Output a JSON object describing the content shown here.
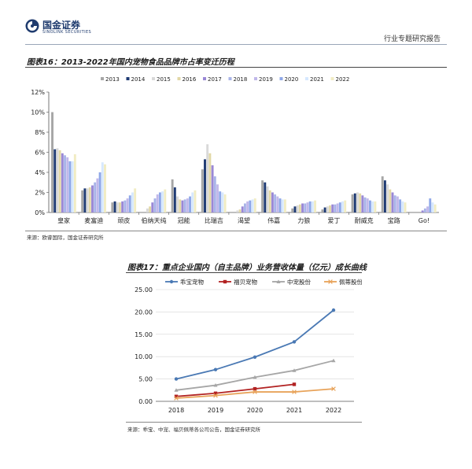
{
  "header": {
    "logo_cn": "国金证券",
    "logo_en": "SINOLINK SECURITIES",
    "report_type": "行业专题研究报告"
  },
  "figure16": {
    "caption": "图表16：2013-2022年国内宠物食品品牌市占率变迁历程",
    "source": "来源：欧睿国际，国金证券研究所"
  },
  "figure17": {
    "caption": "图表17：重点企业国内（自主品牌）业务营收体量（亿元）成长曲线",
    "source": "来源：乖宝、中宠、福贝佩蒂各公司公告，国金证券研究所"
  },
  "chart_data": [
    {
      "type": "bar",
      "categories": [
        "皇家",
        "麦富迪",
        "顽皮",
        "伯纳天纯",
        "冠能",
        "比瑞吉",
        "渴望",
        "伟嘉",
        "力狼",
        "爱丁",
        "耐威克",
        "宝路",
        "Go!"
      ],
      "ylim": [
        0,
        12
      ],
      "yticks": [
        "0%",
        "2%",
        "4%",
        "6%",
        "8%",
        "10%",
        "12%"
      ],
      "grid": false,
      "legend": "top",
      "series": [
        {
          "name": "2013",
          "color": "#a6a6a6",
          "values": [
            10.0,
            2.2,
            1.0,
            0.0,
            3.3,
            4.3,
            0.0,
            3.2,
            0.4,
            0.3,
            1.8,
            3.6,
            0.0
          ]
        },
        {
          "name": "2014",
          "color": "#1f3b73",
          "values": [
            6.3,
            2.4,
            1.1,
            0.0,
            2.5,
            5.3,
            0.0,
            3.0,
            0.6,
            0.5,
            1.9,
            3.2,
            0.0
          ]
        },
        {
          "name": "2015",
          "color": "#d9d9d9",
          "values": [
            6.4,
            2.4,
            1.0,
            0.4,
            1.6,
            6.8,
            0.2,
            2.6,
            0.7,
            0.6,
            2.0,
            2.8,
            0.0
          ]
        },
        {
          "name": "2016",
          "color": "#e2d8a6",
          "values": [
            6.2,
            2.5,
            1.0,
            0.6,
            1.3,
            5.9,
            0.3,
            2.2,
            0.8,
            0.7,
            1.9,
            2.3,
            0.0
          ]
        },
        {
          "name": "2017",
          "color": "#9a88d6",
          "values": [
            5.9,
            2.7,
            1.1,
            1.0,
            1.2,
            4.7,
            0.6,
            2.0,
            0.9,
            0.8,
            1.7,
            2.0,
            0.2
          ]
        },
        {
          "name": "2018",
          "color": "#a9b4e8",
          "values": [
            5.7,
            3.0,
            1.2,
            1.4,
            1.3,
            3.6,
            0.9,
            1.8,
            0.9,
            0.8,
            1.5,
            1.7,
            0.4
          ]
        },
        {
          "name": "2019",
          "color": "#c1b8ea",
          "values": [
            5.5,
            3.4,
            1.4,
            1.8,
            1.4,
            2.8,
            1.1,
            1.6,
            1.0,
            0.9,
            1.4,
            1.6,
            0.6
          ]
        },
        {
          "name": "2020",
          "color": "#8fa8e8",
          "values": [
            5.1,
            4.0,
            1.7,
            2.0,
            1.6,
            2.1,
            1.2,
            1.4,
            1.1,
            1.0,
            1.2,
            1.3,
            1.4
          ]
        },
        {
          "name": "2021",
          "color": "#d6e8ff",
          "values": [
            5.1,
            5.0,
            2.0,
            2.1,
            2.0,
            2.0,
            1.3,
            1.3,
            1.1,
            1.1,
            1.1,
            1.1,
            1.0
          ]
        },
        {
          "name": "2022",
          "color": "#f1ecc3",
          "values": [
            5.8,
            4.8,
            2.4,
            2.3,
            2.2,
            1.8,
            1.4,
            1.3,
            1.2,
            1.2,
            1.1,
            1.0,
            0.8
          ]
        }
      ]
    },
    {
      "type": "line",
      "x": [
        "2018",
        "2019",
        "2020",
        "2021",
        "2022"
      ],
      "ylim": [
        0,
        25
      ],
      "yticks": [
        "0.00",
        "5.00",
        "10.00",
        "15.00",
        "20.00",
        "25.00"
      ],
      "grid": true,
      "legend": "top",
      "series": [
        {
          "name": "乖宝宠物",
          "color": "#4a79b4",
          "marker": "circle",
          "values": [
            5.0,
            7.1,
            9.9,
            13.3,
            20.4
          ]
        },
        {
          "name": "福贝宠物",
          "color": "#b22222",
          "marker": "square",
          "values": [
            1.1,
            1.8,
            2.8,
            3.8,
            null
          ]
        },
        {
          "name": "中宠股份",
          "color": "#a6a6a6",
          "marker": "triangle",
          "values": [
            2.5,
            3.6,
            5.4,
            6.9,
            9.1
          ]
        },
        {
          "name": "佩蒂股份",
          "color": "#e8a35a",
          "marker": "x",
          "values": [
            0.7,
            1.3,
            2.1,
            2.1,
            2.8
          ]
        }
      ]
    }
  ]
}
